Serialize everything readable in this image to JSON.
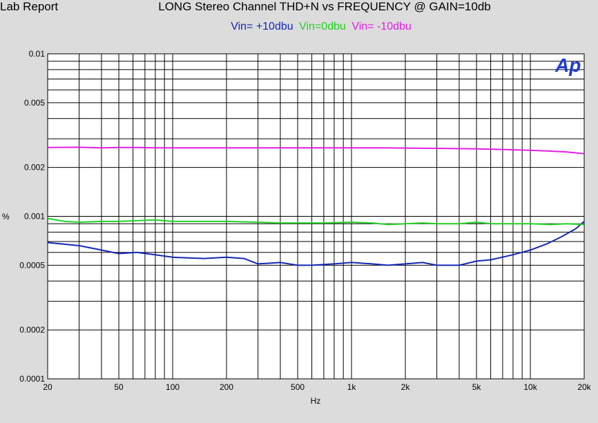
{
  "header": {
    "corner": "Lab Report",
    "title": "LONG Stereo Channel THD+N vs FREQUENCY @ GAIN=10db"
  },
  "logo": "Ap",
  "chart_data": {
    "type": "line",
    "title": "LONG Stereo Channel THD+N vs FREQUENCY @ GAIN=10db",
    "xlabel": "Hz",
    "ylabel": "%",
    "xscale": "log",
    "yscale": "log",
    "xlim": [
      20,
      20000
    ],
    "ylim": [
      0.0001,
      0.01
    ],
    "grid": true,
    "legend_position": "top-center",
    "xticks": [
      {
        "v": 20,
        "label": "20"
      },
      {
        "v": 50,
        "label": "50"
      },
      {
        "v": 100,
        "label": "100"
      },
      {
        "v": 200,
        "label": "200"
      },
      {
        "v": 500,
        "label": "500"
      },
      {
        "v": 1000,
        "label": "1k"
      },
      {
        "v": 2000,
        "label": "2k"
      },
      {
        "v": 5000,
        "label": "5k"
      },
      {
        "v": 10000,
        "label": "10k"
      },
      {
        "v": 20000,
        "label": "20k"
      }
    ],
    "yticks": [
      {
        "v": 0.01,
        "label": "0.01"
      },
      {
        "v": 0.005,
        "label": "0.005"
      },
      {
        "v": 0.002,
        "label": "0.002"
      },
      {
        "v": 0.001,
        "label": "0.001"
      },
      {
        "v": 0.0005,
        "label": "0.0005"
      },
      {
        "v": 0.0002,
        "label": "0.0002"
      },
      {
        "v": 0.0001,
        "label": "0.0001"
      }
    ],
    "series": [
      {
        "name": "Vin= +10dbu",
        "color": "#1428b4",
        "x": [
          20,
          30,
          40,
          50,
          63,
          80,
          100,
          150,
          200,
          250,
          300,
          400,
          500,
          600,
          800,
          1000,
          1300,
          1600,
          2000,
          2500,
          3000,
          4000,
          5000,
          6000,
          8000,
          10000,
          12500,
          15000,
          18000,
          20000
        ],
        "y": [
          0.00069,
          0.00066,
          0.00062,
          0.00059,
          0.0006,
          0.00058,
          0.00056,
          0.00055,
          0.00056,
          0.00055,
          0.00051,
          0.00052,
          0.0005,
          0.0005,
          0.00051,
          0.00052,
          0.00051,
          0.0005,
          0.00051,
          0.00052,
          0.0005,
          0.0005,
          0.00053,
          0.00054,
          0.00058,
          0.00062,
          0.00068,
          0.00075,
          0.00084,
          0.00093
        ]
      },
      {
        "name": "Vin=0dbu",
        "color": "#20d220",
        "x": [
          20,
          25,
          30,
          40,
          50,
          63,
          80,
          100,
          150,
          200,
          300,
          400,
          500,
          700,
          1000,
          1300,
          1600,
          2000,
          2500,
          3000,
          4000,
          5000,
          6000,
          8000,
          10000,
          13000,
          16000,
          20000
        ],
        "y": [
          0.00097,
          0.00093,
          0.00092,
          0.00093,
          0.00093,
          0.00094,
          0.00095,
          0.00093,
          0.00093,
          0.00093,
          0.00092,
          0.00091,
          0.00091,
          0.00091,
          0.00092,
          0.00091,
          0.00089,
          0.0009,
          0.00091,
          0.0009,
          0.0009,
          0.00092,
          0.0009,
          0.0009,
          0.0009,
          0.00089,
          0.0009,
          0.00089
        ]
      },
      {
        "name": "Vin= -10dbu",
        "color": "#e020e0",
        "x": [
          20,
          30,
          40,
          50,
          63,
          80,
          100,
          150,
          200,
          300,
          400,
          500,
          700,
          1000,
          1500,
          2000,
          3000,
          4000,
          5000,
          7000,
          10000,
          13000,
          16000,
          20000
        ],
        "y": [
          0.00265,
          0.00266,
          0.00264,
          0.00265,
          0.00265,
          0.00264,
          0.00264,
          0.00264,
          0.00264,
          0.00264,
          0.00264,
          0.00264,
          0.00264,
          0.00264,
          0.00264,
          0.00263,
          0.00262,
          0.00261,
          0.0026,
          0.00258,
          0.00255,
          0.00252,
          0.00249,
          0.00243
        ]
      }
    ]
  }
}
